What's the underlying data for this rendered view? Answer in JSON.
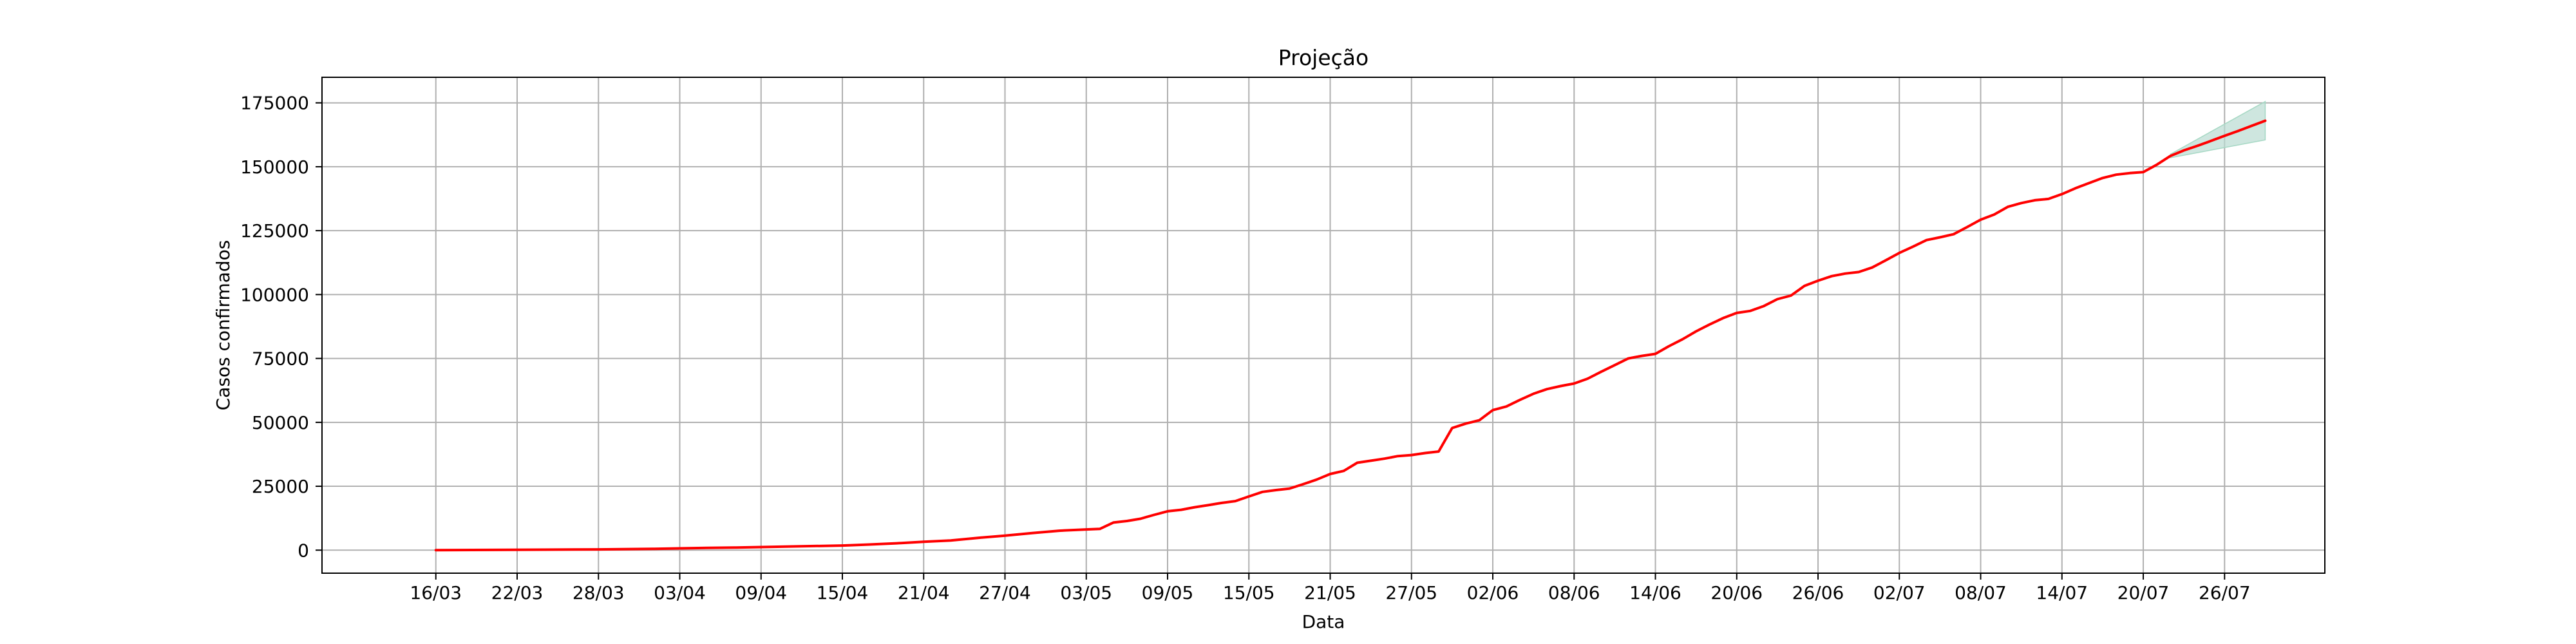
{
  "chart_data": {
    "type": "line",
    "title": "Projeção",
    "xlabel": "Data",
    "ylabel": "Casos confirmados",
    "grid": true,
    "ylim": [
      -9000,
      185000
    ],
    "xlim": [
      -8.4,
      139.4
    ],
    "x_ticks": [
      {
        "x": 0,
        "label": "16/03"
      },
      {
        "x": 6,
        "label": "22/03"
      },
      {
        "x": 12,
        "label": "28/03"
      },
      {
        "x": 18,
        "label": "03/04"
      },
      {
        "x": 24,
        "label": "09/04"
      },
      {
        "x": 30,
        "label": "15/04"
      },
      {
        "x": 36,
        "label": "21/04"
      },
      {
        "x": 42,
        "label": "27/04"
      },
      {
        "x": 48,
        "label": "03/05"
      },
      {
        "x": 54,
        "label": "09/05"
      },
      {
        "x": 60,
        "label": "15/05"
      },
      {
        "x": 66,
        "label": "21/05"
      },
      {
        "x": 72,
        "label": "27/05"
      },
      {
        "x": 78,
        "label": "02/06"
      },
      {
        "x": 84,
        "label": "08/06"
      },
      {
        "x": 90,
        "label": "14/06"
      },
      {
        "x": 96,
        "label": "20/06"
      },
      {
        "x": 102,
        "label": "26/06"
      },
      {
        "x": 108,
        "label": "02/07"
      },
      {
        "x": 114,
        "label": "08/07"
      },
      {
        "x": 120,
        "label": "14/07"
      },
      {
        "x": 126,
        "label": "20/07"
      },
      {
        "x": 132,
        "label": "26/07"
      }
    ],
    "y_ticks": [
      0,
      25000,
      50000,
      75000,
      100000,
      125000,
      150000,
      175000
    ],
    "y_tick_labels": [
      "0",
      "25000",
      "50000",
      "75000",
      "100000",
      "125000",
      "150000",
      "175000"
    ],
    "series": [
      {
        "color": "#ff0000",
        "points": [
          [
            0,
            0
          ],
          [
            4,
            100
          ],
          [
            8,
            200
          ],
          [
            12,
            300
          ],
          [
            16,
            500
          ],
          [
            18,
            700
          ],
          [
            20,
            900
          ],
          [
            22,
            1000
          ],
          [
            24,
            1200
          ],
          [
            27,
            1500
          ],
          [
            30,
            1800
          ],
          [
            32,
            2200
          ],
          [
            34,
            2700
          ],
          [
            36,
            3300
          ],
          [
            38,
            3800
          ],
          [
            40,
            4800
          ],
          [
            42,
            5700
          ],
          [
            44,
            6700
          ],
          [
            46,
            7600
          ],
          [
            48,
            8100
          ],
          [
            49,
            8300
          ],
          [
            50,
            10800
          ],
          [
            51,
            11400
          ],
          [
            52,
            12300
          ],
          [
            53,
            13800
          ],
          [
            54,
            15200
          ],
          [
            55,
            15800
          ],
          [
            56,
            16800
          ],
          [
            57,
            17600
          ],
          [
            58,
            18500
          ],
          [
            59,
            19200
          ],
          [
            60,
            21000
          ],
          [
            61,
            22800
          ],
          [
            62,
            23500
          ],
          [
            63,
            24100
          ],
          [
            64,
            25800
          ],
          [
            65,
            27600
          ],
          [
            66,
            29800
          ],
          [
            67,
            31000
          ],
          [
            68,
            34200
          ],
          [
            69,
            35000
          ],
          [
            70,
            35800
          ],
          [
            71,
            36800
          ],
          [
            72,
            37200
          ],
          [
            73,
            38000
          ],
          [
            74,
            38600
          ],
          [
            75,
            47800
          ],
          [
            76,
            49500
          ],
          [
            77,
            50800
          ],
          [
            78,
            54800
          ],
          [
            79,
            56200
          ],
          [
            80,
            58800
          ],
          [
            81,
            61200
          ],
          [
            82,
            63000
          ],
          [
            83,
            64200
          ],
          [
            84,
            65200
          ],
          [
            85,
            67100
          ],
          [
            86,
            69800
          ],
          [
            87,
            72400
          ],
          [
            88,
            75000
          ],
          [
            89,
            76000
          ],
          [
            90,
            76800
          ],
          [
            91,
            79800
          ],
          [
            92,
            82500
          ],
          [
            93,
            85600
          ],
          [
            94,
            88300
          ],
          [
            95,
            90800
          ],
          [
            96,
            92800
          ],
          [
            97,
            93600
          ],
          [
            98,
            95500
          ],
          [
            99,
            98200
          ],
          [
            100,
            99600
          ],
          [
            101,
            103400
          ],
          [
            102,
            105400
          ],
          [
            103,
            107200
          ],
          [
            104,
            108200
          ],
          [
            105,
            108800
          ],
          [
            106,
            110600
          ],
          [
            107,
            113400
          ],
          [
            108,
            116300
          ],
          [
            109,
            118700
          ],
          [
            110,
            121300
          ],
          [
            111,
            122400
          ],
          [
            112,
            123600
          ],
          [
            113,
            126400
          ],
          [
            114,
            129300
          ],
          [
            115,
            131300
          ],
          [
            116,
            134300
          ],
          [
            117,
            135800
          ],
          [
            118,
            136900
          ],
          [
            119,
            137400
          ],
          [
            120,
            139300
          ],
          [
            121,
            141600
          ],
          [
            122,
            143600
          ],
          [
            123,
            145600
          ],
          [
            124,
            146900
          ],
          [
            125,
            147500
          ],
          [
            126,
            147900
          ],
          [
            127,
            150800
          ],
          [
            128,
            154200
          ],
          [
            129,
            156400
          ],
          [
            130,
            158200
          ],
          [
            131,
            160100
          ],
          [
            132,
            162100
          ],
          [
            133,
            164000
          ],
          [
            134,
            166000
          ],
          [
            135,
            168000
          ]
        ]
      }
    ],
    "forecast_band": {
      "color": "#b9dcd2",
      "x": [
        128,
        135
      ],
      "upper": [
        154900,
        175500
      ],
      "lower": [
        153500,
        160500
      ]
    }
  }
}
